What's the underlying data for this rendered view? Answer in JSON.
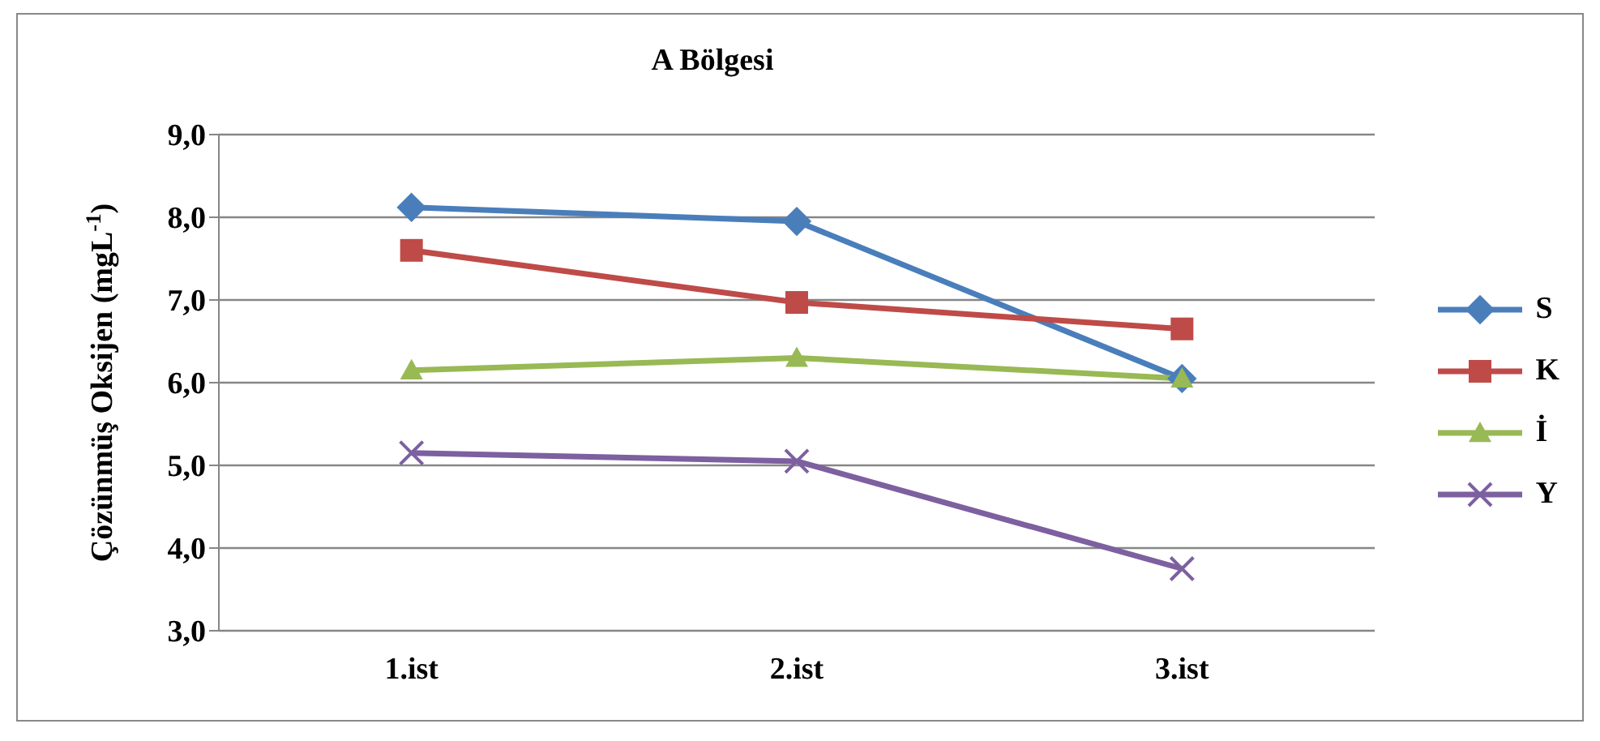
{
  "chart_data": {
    "type": "line",
    "title": "A Bölgesi",
    "ylabel": "Çözünmüş Oksijen (mgL$^{-1}$)",
    "categories": [
      "1.ist",
      "2.ist",
      "3.ist"
    ],
    "series": [
      {
        "name": "S",
        "color": "#4a7ebb",
        "marker": "diamond",
        "values": [
          8.12,
          7.95,
          6.05
        ]
      },
      {
        "name": "K",
        "color": "#be4b48",
        "marker": "square",
        "values": [
          7.6,
          6.97,
          6.65
        ]
      },
      {
        "name": "İ",
        "color": "#98b954",
        "marker": "triangle",
        "values": [
          6.15,
          6.3,
          6.05
        ]
      },
      {
        "name": "Y",
        "color": "#7d60a0",
        "marker": "cross",
        "values": [
          5.15,
          5.05,
          3.75
        ]
      }
    ],
    "ylim": [
      3,
      9
    ],
    "yticks": [
      {
        "value": 3,
        "label": "3,0"
      },
      {
        "value": 4,
        "label": "4,0"
      },
      {
        "value": 5,
        "label": "5,0"
      },
      {
        "value": 6,
        "label": "6,0"
      },
      {
        "value": 7,
        "label": "7,0"
      },
      {
        "value": 8,
        "label": "8,0"
      },
      {
        "value": 9,
        "label": "9,0"
      }
    ],
    "grid": "y",
    "legend": "right",
    "line_style": "solid"
  }
}
